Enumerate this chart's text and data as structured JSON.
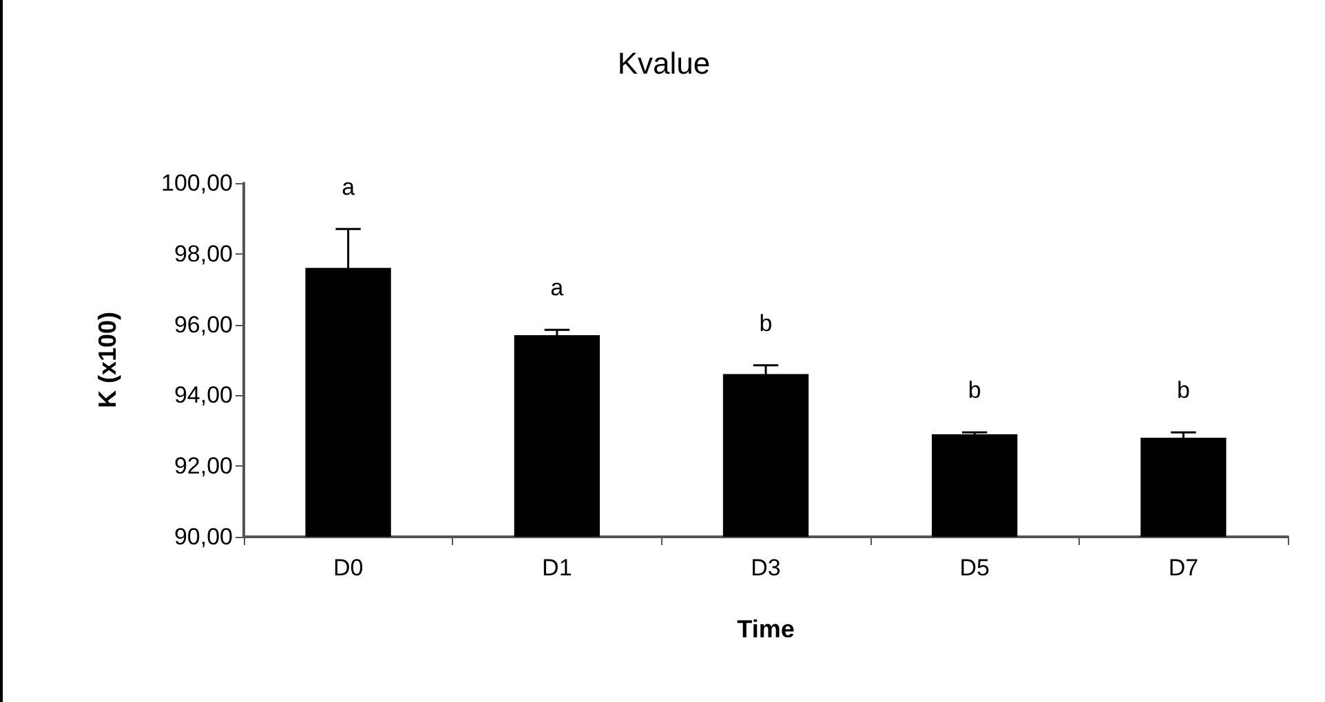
{
  "chart_data": {
    "type": "bar",
    "title": "Kvalue",
    "xlabel": "Time",
    "ylabel": "K (x100)",
    "categories": [
      "D0",
      "D1",
      "D3",
      "D5",
      "D7"
    ],
    "values": [
      97.6,
      95.7,
      94.6,
      92.9,
      92.8
    ],
    "errors": [
      1.1,
      0.15,
      0.25,
      0.05,
      0.15
    ],
    "color": "#000000",
    "ylim": [
      90,
      100
    ],
    "yticks": [
      {
        "value": 90,
        "label": "90,00"
      },
      {
        "value": 92,
        "label": "92,00"
      },
      {
        "value": 94,
        "label": "94,00"
      },
      {
        "value": 96,
        "label": "96,00"
      },
      {
        "value": 98,
        "label": "98,00"
      },
      {
        "value": 100,
        "label": "100,00"
      }
    ],
    "grid": false,
    "annotations": [
      "a",
      "a",
      "b",
      "b",
      "b"
    ]
  }
}
